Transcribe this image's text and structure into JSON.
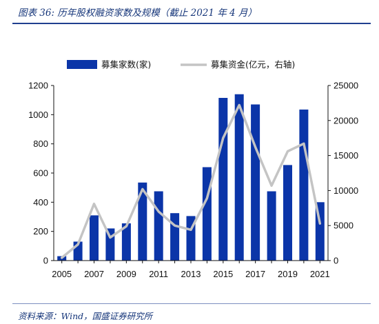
{
  "figure": {
    "title": "图表 36:  历年股权融资家数及规模（截止 2021 年 4 月）",
    "source": "资料来源：Wind，国盛证券研究所"
  },
  "chart_data": {
    "type": "bar",
    "x": [
      2005,
      2006,
      2007,
      2008,
      2009,
      2010,
      2011,
      2012,
      2013,
      2014,
      2015,
      2016,
      2017,
      2018,
      2019,
      2020,
      2021
    ],
    "x_tick_labels": [
      "2005",
      "2007",
      "2009",
      "2011",
      "2013",
      "2015",
      "2017",
      "2019",
      "2021"
    ],
    "series": [
      {
        "name": "募集家数(家)",
        "type": "bar",
        "axis": "left",
        "color": "#0b35a8",
        "values": [
          30,
          130,
          310,
          220,
          255,
          535,
          475,
          325,
          305,
          640,
          1115,
          1140,
          1070,
          475,
          655,
          1035,
          400
        ]
      },
      {
        "name": "募集资金(亿元，右轴)",
        "type": "line",
        "axis": "right",
        "color": "#c4c4c4",
        "values": [
          400,
          2300,
          8100,
          3300,
          4900,
          10200,
          7000,
          5000,
          4400,
          8900,
          17500,
          22200,
          16200,
          10700,
          15600,
          16700,
          5300
        ]
      }
    ],
    "left_axis": {
      "ylim": [
        0,
        1200
      ],
      "ticks": [
        0,
        200,
        400,
        600,
        800,
        1000,
        1200
      ]
    },
    "right_axis": {
      "ylim": [
        0,
        25000
      ],
      "ticks": [
        0,
        5000,
        10000,
        15000,
        20000,
        25000
      ]
    },
    "legend_position": "top",
    "grid": false
  }
}
